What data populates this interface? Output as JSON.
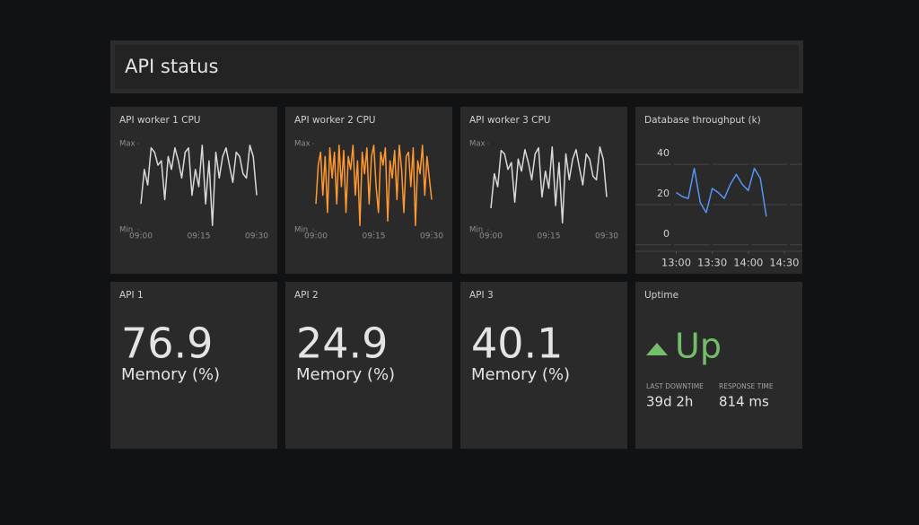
{
  "header": {
    "title": "API status"
  },
  "chart_data": [
    {
      "type": "line",
      "title": "API worker 1 CPU",
      "color": "#d8d9da",
      "values": [
        30,
        70,
        52,
        95,
        90,
        75,
        80,
        35,
        85,
        70,
        95,
        80,
        60,
        90,
        95,
        40,
        70,
        50,
        98,
        30,
        80,
        5,
        90,
        60,
        85,
        95,
        75,
        55,
        90,
        85,
        65,
        60,
        98,
        85,
        40
      ],
      "xlim": [
        0,
        34
      ],
      "xticks": [
        {
          "value": 0,
          "label": "09:00"
        },
        {
          "value": 17,
          "label": "09:15"
        },
        {
          "value": 34,
          "label": "09:30"
        }
      ],
      "ylim": [
        0,
        100
      ],
      "yticks": [
        {
          "value": 0,
          "label": "Min"
        },
        {
          "value": 100,
          "label": "Max"
        }
      ]
    },
    {
      "type": "line",
      "title": "API worker 2 CPU",
      "color": "#ff9830",
      "values": [
        30,
        75,
        90,
        40,
        85,
        20,
        95,
        60,
        90,
        30,
        98,
        50,
        92,
        20,
        85,
        70,
        98,
        40,
        80,
        5,
        90,
        65,
        95,
        30,
        85,
        98,
        50,
        20,
        90,
        75,
        95,
        10,
        80,
        60,
        92,
        35,
        98,
        70,
        20,
        85,
        90,
        50,
        95,
        5,
        80,
        65,
        98,
        40,
        85,
        60,
        35
      ],
      "xlim": [
        0,
        50
      ],
      "xticks": [
        {
          "value": 0,
          "label": "09:00"
        },
        {
          "value": 25,
          "label": "09:15"
        },
        {
          "value": 50,
          "label": "09:30"
        }
      ],
      "ylim": [
        0,
        100
      ],
      "yticks": [
        {
          "value": 0,
          "label": "Min"
        },
        {
          "value": 100,
          "label": "Max"
        }
      ]
    },
    {
      "type": "line",
      "title": "API worker 3 CPU",
      "color": "#d8d9da",
      "values": [
        25,
        65,
        50,
        92,
        88,
        70,
        78,
        32,
        82,
        68,
        93,
        78,
        58,
        88,
        95,
        38,
        68,
        48,
        96,
        28,
        78,
        8,
        88,
        58,
        82,
        93,
        72,
        52,
        88,
        82,
        62,
        58,
        96,
        82,
        38
      ],
      "xlim": [
        0,
        34
      ],
      "xticks": [
        {
          "value": 0,
          "label": "09:00"
        },
        {
          "value": 17,
          "label": "09:15"
        },
        {
          "value": 34,
          "label": "09:30"
        }
      ],
      "ylim": [
        0,
        100
      ],
      "yticks": [
        {
          "value": 0,
          "label": "Min"
        },
        {
          "value": 100,
          "label": "Max"
        }
      ]
    },
    {
      "type": "line",
      "title": "Database throughput (k)",
      "color": "#5794f2",
      "x": [
        0,
        5,
        10,
        15,
        20,
        25,
        30,
        35,
        40,
        45,
        50,
        55,
        60,
        65,
        70,
        75
      ],
      "values": [
        26,
        24,
        23,
        38,
        21,
        16,
        28,
        26,
        23,
        30,
        35,
        30,
        27,
        38,
        33,
        14
      ],
      "xlim": [
        -34,
        105
      ],
      "xticks": [
        {
          "value": 0,
          "label": "13:00"
        },
        {
          "value": 30,
          "label": "13:30"
        },
        {
          "value": 60,
          "label": "14:00"
        },
        {
          "value": 90,
          "label": "14:30"
        }
      ],
      "ylim": [
        -5,
        57
      ],
      "yticks": [
        0,
        20,
        40
      ]
    }
  ],
  "stats": [
    {
      "title": "API 1",
      "value": "76.9",
      "unit": "Memory (%)"
    },
    {
      "title": "API 2",
      "value": "24.9",
      "unit": "Memory (%)"
    },
    {
      "title": "API 3",
      "value": "40.1",
      "unit": "Memory (%)"
    }
  ],
  "uptime": {
    "title": "Uptime",
    "status": "Up",
    "fields": [
      {
        "label": "LAST DOWNTIME",
        "value": "39d 2h"
      },
      {
        "label": "RESPONSE TIME",
        "value": "814 ms"
      }
    ]
  }
}
